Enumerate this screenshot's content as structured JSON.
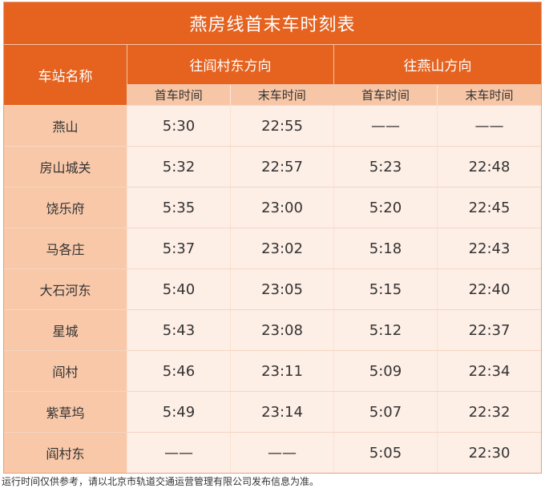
{
  "title": "燕房线首末车时刻表",
  "header": {
    "station": "车站名称",
    "dir1": "往阎村东方向",
    "dir2": "往燕山方向",
    "first": "首车时间",
    "last": "末车时间"
  },
  "rows": [
    {
      "station": "燕山",
      "d1f": "5:30",
      "d1l": "22:55",
      "d2f": "——",
      "d2l": "——"
    },
    {
      "station": "房山城关",
      "d1f": "5:32",
      "d1l": "22:57",
      "d2f": "5:23",
      "d2l": "22:48"
    },
    {
      "station": "饶乐府",
      "d1f": "5:35",
      "d1l": "23:00",
      "d2f": "5:20",
      "d2l": "22:45"
    },
    {
      "station": "马各庄",
      "d1f": "5:37",
      "d1l": "23:02",
      "d2f": "5:18",
      "d2l": "22:43"
    },
    {
      "station": "大石河东",
      "d1f": "5:40",
      "d1l": "23:05",
      "d2f": "5:15",
      "d2l": "22:40"
    },
    {
      "station": "星城",
      "d1f": "5:43",
      "d1l": "23:08",
      "d2f": "5:12",
      "d2l": "22:37"
    },
    {
      "station": "阎村",
      "d1f": "5:46",
      "d1l": "23:11",
      "d2f": "5:09",
      "d2l": "22:34"
    },
    {
      "station": "紫草坞",
      "d1f": "5:49",
      "d1l": "23:14",
      "d2f": "5:07",
      "d2l": "22:32"
    },
    {
      "station": "阎村东",
      "d1f": "——",
      "d1l": "——",
      "d2f": "5:05",
      "d2l": "22:30"
    }
  ],
  "footer": "运行时间仅供参考，请以北京市轨道交通运营管理有限公司发布信息为准。",
  "colors": {
    "header_bg": "#e5621f",
    "subheader_bg": "#f7c6a6",
    "station_bg": "#f8c8a9",
    "cell_bg": "#fdeee6"
  }
}
